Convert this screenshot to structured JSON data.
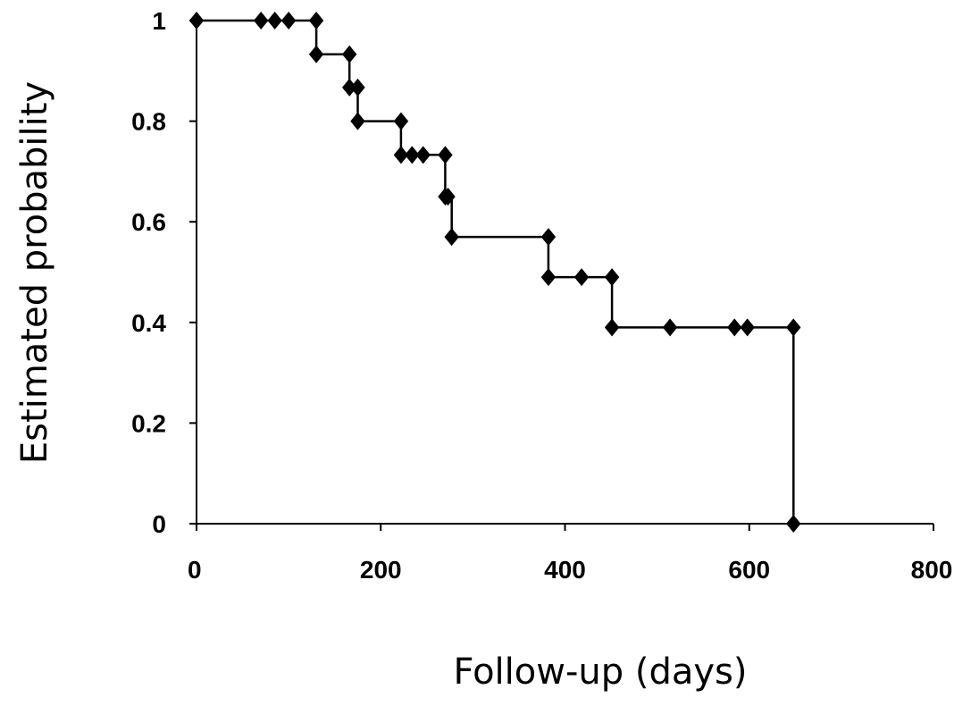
{
  "chart_data": {
    "type": "line",
    "step": true,
    "xlabel": "Follow-up (days)",
    "ylabel": "Estimated probability",
    "xlim": [
      0,
      800
    ],
    "ylim": [
      0,
      1
    ],
    "xticks": [
      0,
      200,
      400,
      600,
      800
    ],
    "yticks": [
      0,
      0.2,
      0.4,
      0.6,
      0.8,
      1
    ],
    "xtick_labels": [
      "0",
      "200",
      "400",
      "600",
      "800"
    ],
    "ytick_labels": [
      "0",
      "0.2",
      "0.4",
      "0.6",
      "0.8",
      "1"
    ],
    "grid": false,
    "legend": "none",
    "color": "#000000",
    "marker": "diamond",
    "step_path": [
      [
        0,
        1
      ],
      [
        130,
        1
      ],
      [
        130,
        0.933
      ],
      [
        166,
        0.933
      ],
      [
        166,
        0.867
      ],
      [
        175,
        0.867
      ],
      [
        175,
        0.8
      ],
      [
        222,
        0.8
      ],
      [
        222,
        0.733
      ],
      [
        270,
        0.733
      ],
      [
        270,
        0.65
      ],
      [
        277,
        0.65
      ],
      [
        277,
        0.57
      ],
      [
        382,
        0.57
      ],
      [
        382,
        0.49
      ],
      [
        451,
        0.49
      ],
      [
        451,
        0.39
      ],
      [
        648,
        0.39
      ],
      [
        648,
        0
      ]
    ],
    "markers": [
      [
        0,
        1
      ],
      [
        70,
        1
      ],
      [
        85,
        1
      ],
      [
        100,
        1
      ],
      [
        130,
        1
      ],
      [
        130,
        0.933
      ],
      [
        166,
        0.933
      ],
      [
        166,
        0.867
      ],
      [
        175,
        0.867
      ],
      [
        175,
        0.8
      ],
      [
        222,
        0.8
      ],
      [
        222,
        0.733
      ],
      [
        234,
        0.733
      ],
      [
        246,
        0.733
      ],
      [
        270,
        0.733
      ],
      [
        270,
        0.65
      ],
      [
        273,
        0.65
      ],
      [
        277,
        0.57
      ],
      [
        382,
        0.57
      ],
      [
        382,
        0.49
      ],
      [
        418,
        0.49
      ],
      [
        451,
        0.49
      ],
      [
        451,
        0.39
      ],
      [
        514,
        0.39
      ],
      [
        584,
        0.39
      ],
      [
        598,
        0.39
      ],
      [
        648,
        0.39
      ],
      [
        648,
        0
      ]
    ]
  }
}
